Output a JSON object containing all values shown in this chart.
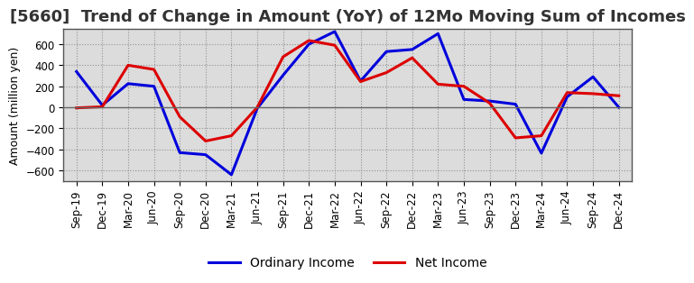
{
  "title": "[5660]  Trend of Change in Amount (YoY) of 12Mo Moving Sum of Incomes",
  "ylabel": "Amount (million yen)",
  "x_labels": [
    "Sep-19",
    "Dec-19",
    "Mar-20",
    "Jun-20",
    "Sep-20",
    "Dec-20",
    "Mar-21",
    "Jun-21",
    "Sep-21",
    "Dec-21",
    "Mar-22",
    "Jun-22",
    "Sep-22",
    "Dec-22",
    "Mar-23",
    "Jun-23",
    "Sep-23",
    "Dec-23",
    "Mar-24",
    "Jun-24",
    "Sep-24",
    "Dec-24"
  ],
  "ordinary_income": [
    340,
    20,
    225,
    200,
    -430,
    -450,
    -640,
    -10,
    305,
    600,
    720,
    250,
    530,
    550,
    700,
    75,
    60,
    30,
    -435,
    100,
    290,
    0
  ],
  "net_income": [
    -5,
    5,
    400,
    360,
    -90,
    -320,
    -270,
    0,
    480,
    635,
    590,
    245,
    330,
    470,
    220,
    200,
    40,
    -290,
    -270,
    140,
    130,
    110
  ],
  "ordinary_color": "#0000dd",
  "net_color": "#dd0000",
  "ylim": [
    -700,
    750
  ],
  "yticks": [
    -600,
    -400,
    -200,
    0,
    200,
    400,
    600
  ],
  "grid_color": "#999999",
  "bg_color": "#e8e8e8",
  "plot_bg_color": "#d8d8d8",
  "line_width": 2.2,
  "legend_ordinary": "Ordinary Income",
  "legend_net": "Net Income",
  "title_fontsize": 13,
  "tick_fontsize": 8.5,
  "ylabel_fontsize": 9
}
